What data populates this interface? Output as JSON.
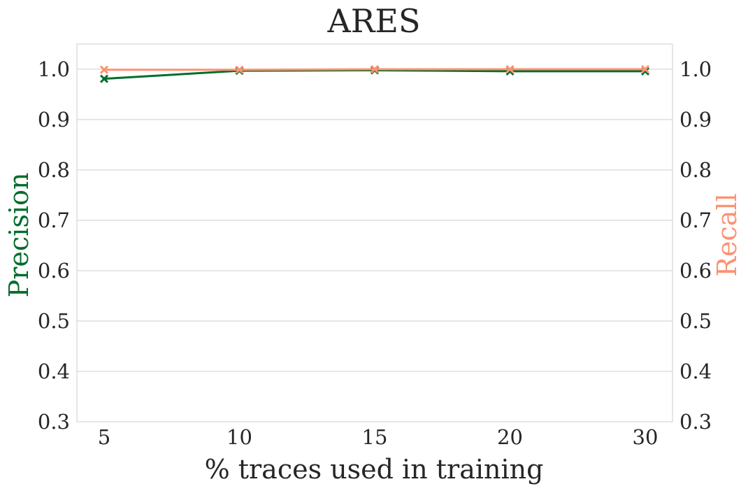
{
  "chart_data": {
    "type": "line",
    "title": "ARES",
    "xlabel": "% traces used in training",
    "ylabel_left": "Precision",
    "ylabel_right": "Recall",
    "categories": [
      "5",
      "10",
      "15",
      "20",
      "30"
    ],
    "ylim": [
      0.3,
      1.05
    ],
    "yticks": [
      "0.3",
      "0.4",
      "0.5",
      "0.6",
      "0.7",
      "0.8",
      "0.9",
      "1.0"
    ],
    "grid": true,
    "series": [
      {
        "name": "Precision",
        "axis": "left",
        "color": "#006d2c",
        "marker": "x",
        "values": [
          0.981,
          0.997,
          0.998,
          0.996,
          0.996
        ]
      },
      {
        "name": "Recall",
        "axis": "right",
        "color": "#fc9272",
        "marker": "x",
        "values": [
          0.999,
          0.999,
          1.0,
          1.0,
          1.0
        ]
      }
    ]
  }
}
